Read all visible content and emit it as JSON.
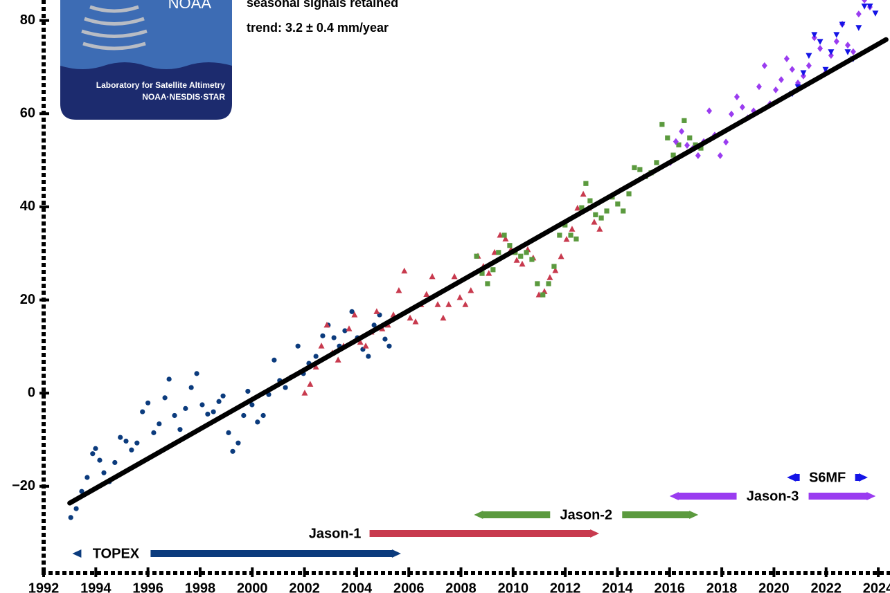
{
  "chart_data": {
    "type": "scatter",
    "subtitle": "seasonal signals retained",
    "annotation": "trend:  3.2 ± 0.4 mm/year",
    "logo": {
      "name": "NOAA",
      "lab": "Laboratory for Satellite Altimetry",
      "org": "NOAA·NESDIS·STAR"
    },
    "xlim": [
      1992,
      2024.45
    ],
    "ylim": [
      -38.6,
      84.4
    ],
    "xticks": [
      1992,
      1994,
      1996,
      1998,
      2000,
      2002,
      2004,
      2006,
      2008,
      2010,
      2012,
      2014,
      2016,
      2018,
      2020,
      2022,
      2024
    ],
    "yticks": [
      {
        "value": -20,
        "label": "−20"
      },
      0,
      20,
      40,
      60,
      80
    ],
    "trend": {
      "x": [
        1993,
        2024.3
      ],
      "values": [
        -23.6,
        75.9
      ],
      "color": "#000000"
    },
    "series": [
      {
        "name": "TOPEX",
        "color": "#0b3b7d",
        "marker": "circle",
        "x": [
          1993.04,
          1993.25,
          1993.46,
          1993.67,
          1993.88,
          1993.99,
          1994.15,
          1994.31,
          1994.52,
          1994.73,
          1994.94,
          1995.16,
          1995.37,
          1995.58,
          1995.79,
          1996.0,
          1996.22,
          1996.43,
          1996.65,
          1996.81,
          1997.02,
          1997.23,
          1997.44,
          1997.66,
          1997.87,
          1998.08,
          1998.29,
          1998.51,
          1998.72,
          1998.88,
          1999.09,
          1999.25,
          1999.46,
          1999.67,
          1999.83,
          1999.99,
          2000.2,
          2000.42,
          2000.63,
          2000.84,
          2001.05,
          2001.27,
          2001.48,
          2001.75,
          2001.96,
          2002.17,
          2002.44,
          2002.7,
          2002.91,
          2003.13,
          2003.34,
          2003.55,
          2003.82,
          2004.03,
          2004.24,
          2004.45,
          2004.67,
          2004.88,
          2005.09,
          2005.25,
          2005.46
        ],
        "values": [
          -26.7,
          -24.8,
          -21.1,
          -18.1,
          -13.0,
          -11.9,
          -14.4,
          -17.1,
          -19.0,
          -14.9,
          -9.5,
          -10.3,
          -12.2,
          -10.7,
          -4.0,
          -2.1,
          -8.5,
          -6.6,
          -1.0,
          3.0,
          -4.8,
          -7.8,
          -3.3,
          1.2,
          4.2,
          -2.5,
          -4.5,
          -4.0,
          -1.8,
          -0.6,
          -8.5,
          -12.5,
          -10.7,
          -4.8,
          0.4,
          -2.5,
          -6.2,
          -4.8,
          -0.3,
          7.1,
          2.7,
          1.2,
          3.4,
          10.1,
          4.2,
          6.4,
          7.9,
          12.3,
          14.6,
          11.9,
          10.1,
          13.4,
          17.5,
          11.9,
          9.4,
          7.9,
          14.6,
          16.8,
          11.6,
          10.1,
          16.1
        ]
      },
      {
        "name": "Jason-1",
        "color": "#c83a4e",
        "marker": "triangle",
        "x": [
          2002.01,
          2002.22,
          2002.44,
          2002.65,
          2002.86,
          2003.07,
          2003.29,
          2003.5,
          2003.71,
          2003.92,
          2004.14,
          2004.35,
          2004.56,
          2004.77,
          2004.98,
          2005.2,
          2005.41,
          2005.62,
          2005.83,
          2006.05,
          2006.26,
          2006.47,
          2006.68,
          2006.9,
          2007.11,
          2007.32,
          2007.53,
          2007.75,
          2007.96,
          2008.17,
          2008.38,
          2008.65,
          2008.86,
          2009.07,
          2009.29,
          2009.5,
          2009.71,
          2009.92,
          2010.14,
          2010.35,
          2010.56,
          2010.77,
          2010.99,
          2011.2,
          2011.41,
          2011.62,
          2011.84,
          2012.05,
          2012.26,
          2012.47,
          2012.69,
          2012.9,
          2013.11,
          2013.32
        ],
        "values": [
          0.0,
          1.9,
          5.6,
          10.1,
          14.6,
          8.6,
          7.1,
          10.1,
          13.8,
          16.8,
          10.9,
          10.1,
          13.1,
          17.5,
          13.8,
          14.6,
          16.8,
          22.0,
          26.2,
          16.1,
          15.3,
          19.0,
          21.2,
          25.0,
          19.0,
          16.1,
          19.0,
          25.0,
          20.5,
          19.0,
          22.0,
          29.4,
          27.2,
          25.7,
          30.2,
          33.9,
          33.1,
          30.8,
          28.5,
          27.7,
          30.8,
          29.0,
          21.1,
          21.8,
          24.8,
          26.3,
          29.3,
          33.0,
          35.2,
          39.7,
          42.7,
          39.7,
          36.7,
          35.2
        ]
      },
      {
        "name": "Jason-2",
        "color": "#5b9a3e",
        "marker": "square",
        "x": [
          2008.6,
          2008.81,
          2009.02,
          2009.23,
          2009.44,
          2009.66,
          2009.87,
          2010.08,
          2010.29,
          2010.51,
          2010.72,
          2010.93,
          2011.14,
          2011.36,
          2011.57,
          2011.78,
          2011.99,
          2012.21,
          2012.42,
          2012.63,
          2012.79,
          2012.95,
          2013.16,
          2013.38,
          2013.59,
          2013.8,
          2014.01,
          2014.22,
          2014.44,
          2014.65,
          2014.86,
          2015.07,
          2015.29,
          2015.5,
          2015.71,
          2015.92,
          2016.14,
          2016.35,
          2016.56,
          2016.77,
          2016.99,
          2017.2
        ],
        "values": [
          29.4,
          25.7,
          23.5,
          26.5,
          30.2,
          33.9,
          31.7,
          30.2,
          29.4,
          30.2,
          28.7,
          23.5,
          21.1,
          23.5,
          27.2,
          33.9,
          36.1,
          33.9,
          33.1,
          39.8,
          45.0,
          41.3,
          38.3,
          37.6,
          39.1,
          42.1,
          40.6,
          39.1,
          42.8,
          48.4,
          48.0,
          46.5,
          47.3,
          49.5,
          57.7,
          54.8,
          51.1,
          53.3,
          58.5,
          54.8,
          53.3,
          52.6
        ]
      },
      {
        "name": "Jason-3",
        "color": "#9a3cf0",
        "marker": "diamond",
        "x": [
          2016.03,
          2016.24,
          2016.46,
          2016.67,
          2016.88,
          2017.09,
          2017.31,
          2017.52,
          2017.73,
          2017.94,
          2018.16,
          2018.37,
          2018.58,
          2018.79,
          2019.0,
          2019.22,
          2019.43,
          2019.64,
          2019.85,
          2020.07,
          2020.28,
          2020.49,
          2020.7,
          2020.92,
          2021.13,
          2021.34,
          2021.55,
          2021.77,
          2021.98,
          2022.19,
          2022.4,
          2022.62,
          2022.83,
          2023.04,
          2023.25,
          2023.47,
          2023.68
        ],
        "values": [
          49.5,
          54.0,
          56.2,
          53.2,
          52.5,
          51.0,
          54.0,
          60.6,
          55.4,
          51.0,
          53.9,
          59.9,
          63.6,
          61.4,
          59.1,
          60.6,
          65.8,
          70.3,
          62.1,
          65.1,
          67.3,
          71.8,
          69.5,
          66.6,
          68.1,
          70.3,
          76.3,
          74.0,
          68.8,
          72.5,
          75.5,
          79.2,
          74.7,
          73.3,
          81.4,
          84.4,
          82.9
        ]
      },
      {
        "name": "S6MF",
        "color": "#1414e6",
        "marker": "triangle-down",
        "x": [
          2020.7,
          2020.92,
          2021.13,
          2021.34,
          2021.55,
          2021.77,
          2021.98,
          2022.19,
          2022.4,
          2022.62,
          2022.83,
          2023.04,
          2023.25,
          2023.47,
          2023.68,
          2023.89
        ],
        "values": [
          64.3,
          65.8,
          68.8,
          72.5,
          77.0,
          75.5,
          69.5,
          73.3,
          77.0,
          79.2,
          73.3,
          71.8,
          78.5,
          83.1,
          83.1,
          81.6
        ]
      }
    ],
    "missions": [
      {
        "name": "TOPEX",
        "color": "#0b3b7d",
        "start": 1993.1,
        "end": 2005.7
      },
      {
        "name": "Jason-1",
        "color": "#c83a4e",
        "start": 2002.0,
        "end": 2013.3
      },
      {
        "name": "Jason-2",
        "color": "#5b9a3e",
        "start": 2008.5,
        "end": 2017.1
      },
      {
        "name": "Jason-3",
        "color": "#9a3cf0",
        "start": 2016.0,
        "end": 2023.9
      },
      {
        "name": "S6MF",
        "color": "#1414e6",
        "start": 2020.5,
        "end": 2023.6
      }
    ]
  }
}
